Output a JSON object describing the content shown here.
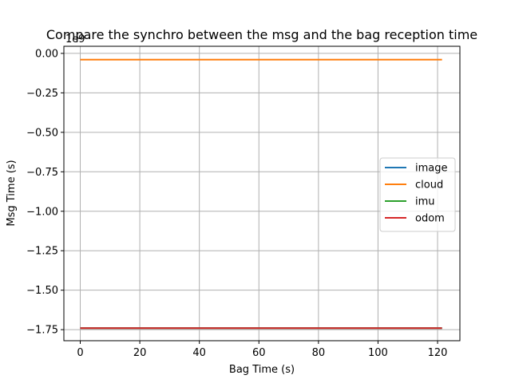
{
  "chart_data": {
    "type": "line",
    "title": "Compare the synchro between the msg and the bag reception time",
    "xlabel": "Bag Time (s)",
    "ylabel": "Msg Time (s)",
    "y_offset_label": "1e9",
    "xlim": [
      -5.5,
      127.5
    ],
    "ylim": [
      -1.82,
      0.045
    ],
    "xticks": [
      0,
      20,
      40,
      60,
      80,
      100,
      120
    ],
    "yticks": [
      0.0,
      -0.25,
      -0.5,
      -0.75,
      -1.0,
      -1.25,
      -1.5,
      -1.75
    ],
    "ytick_labels": [
      "0.00",
      "−0.25",
      "−0.50",
      "−0.75",
      "−1.00",
      "−1.25",
      "−1.50",
      "−1.75"
    ],
    "grid": true,
    "legend_position": "center-right",
    "series": [
      {
        "name": "image",
        "color": "#1f77b4",
        "x": [
          0,
          121.5
        ],
        "y": [
          -1.7404,
          -1.7404
        ]
      },
      {
        "name": "cloud",
        "color": "#ff7f0e",
        "x": [
          0,
          121.5
        ],
        "y": [
          -0.0395,
          -0.0395
        ]
      },
      {
        "name": "imu",
        "color": "#2ca02c",
        "x": [
          0,
          121.5
        ],
        "y": [
          -1.7404,
          -1.7404
        ]
      },
      {
        "name": "odom",
        "color": "#d62728",
        "x": [
          0,
          121.5
        ],
        "y": [
          -1.7404,
          -1.7404
        ]
      }
    ]
  }
}
